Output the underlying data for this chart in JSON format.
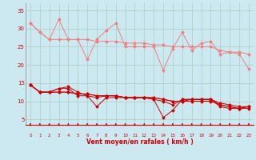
{
  "x": [
    0,
    1,
    2,
    3,
    4,
    5,
    6,
    7,
    8,
    9,
    10,
    11,
    12,
    13,
    14,
    15,
    16,
    17,
    18,
    19,
    20,
    21,
    22,
    23
  ],
  "series_light": [
    [
      31.5,
      29.0,
      27.0,
      32.5,
      27.0,
      27.0,
      21.5,
      27.0,
      29.5,
      31.5,
      25.0,
      25.0,
      25.0,
      25.0,
      18.5,
      24.5,
      29.0,
      24.0,
      26.0,
      26.5,
      23.0,
      23.5,
      23.0,
      19.0
    ],
    [
      31.5,
      29.0,
      27.0,
      27.0,
      27.0,
      27.0,
      27.0,
      26.5,
      26.5,
      26.5,
      26.0,
      26.0,
      26.0,
      25.5,
      25.5,
      25.0,
      25.0,
      25.0,
      25.0,
      25.0,
      24.0,
      23.5,
      23.5,
      23.0
    ]
  ],
  "series_dark": [
    [
      14.5,
      12.5,
      12.5,
      13.5,
      13.5,
      11.5,
      11.5,
      8.5,
      11.0,
      11.0,
      11.0,
      11.0,
      11.0,
      10.5,
      5.5,
      7.5,
      10.5,
      10.5,
      10.5,
      10.5,
      9.0,
      8.5,
      8.0,
      8.5
    ],
    [
      14.5,
      12.5,
      12.5,
      13.5,
      14.0,
      12.5,
      11.5,
      11.0,
      11.5,
      11.5,
      11.0,
      11.0,
      11.0,
      10.5,
      10.0,
      9.0,
      10.5,
      10.5,
      10.5,
      10.5,
      8.5,
      8.0,
      8.0,
      8.5
    ],
    [
      14.5,
      12.5,
      12.5,
      12.5,
      12.5,
      12.0,
      12.0,
      11.5,
      11.5,
      11.5,
      11.0,
      11.0,
      11.0,
      11.0,
      10.5,
      10.0,
      10.0,
      10.5,
      10.5,
      10.5,
      9.5,
      9.0,
      8.5,
      8.5
    ],
    [
      14.5,
      12.5,
      12.5,
      12.5,
      12.5,
      12.0,
      12.0,
      11.5,
      11.5,
      11.5,
      11.0,
      11.0,
      11.0,
      11.0,
      10.5,
      10.0,
      10.0,
      10.0,
      10.0,
      10.0,
      9.0,
      8.5,
      8.0,
      8.0
    ]
  ],
  "light_color": "#f08080",
  "dark_color": "#cc0000",
  "bg_color": "#cce8f0",
  "grid_color": "#aaccc0",
  "tick_color": "#cc0000",
  "label_color": "#cc0000",
  "xlabel": "Vent moyen/en rafales ( km/h )",
  "ylim": [
    3.5,
    37
  ],
  "yticks": [
    5,
    10,
    15,
    20,
    25,
    30,
    35
  ],
  "xlim": [
    -0.5,
    23.5
  ]
}
